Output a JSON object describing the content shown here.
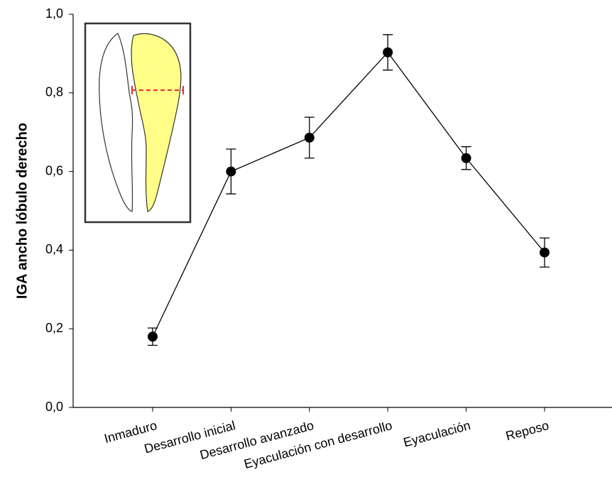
{
  "chart_data": {
    "type": "line",
    "y_label": "IGA ancho lóbulo derecho",
    "categories": [
      "Inmaduro",
      "Desarrollo inicial",
      "Desarrollo avanzado",
      "Eyaculación con desarrollo",
      "Eyaculación",
      "Reposo"
    ],
    "values": [
      0.18,
      0.6,
      0.686,
      0.903,
      0.634,
      0.394
    ],
    "errors": [
      0.022,
      0.057,
      0.052,
      0.045,
      0.029,
      0.037
    ],
    "color": "#000000",
    "ylim": [
      0,
      1
    ],
    "yticks": [
      {
        "value": 0,
        "label": "0,0"
      },
      {
        "value": 0.2,
        "label": "0,2"
      },
      {
        "value": 0.4,
        "label": "0,4"
      },
      {
        "value": 0.6,
        "label": "0,6"
      },
      {
        "value": 0.8,
        "label": "0,8"
      },
      {
        "value": 1,
        "label": "1,0"
      }
    ]
  }
}
